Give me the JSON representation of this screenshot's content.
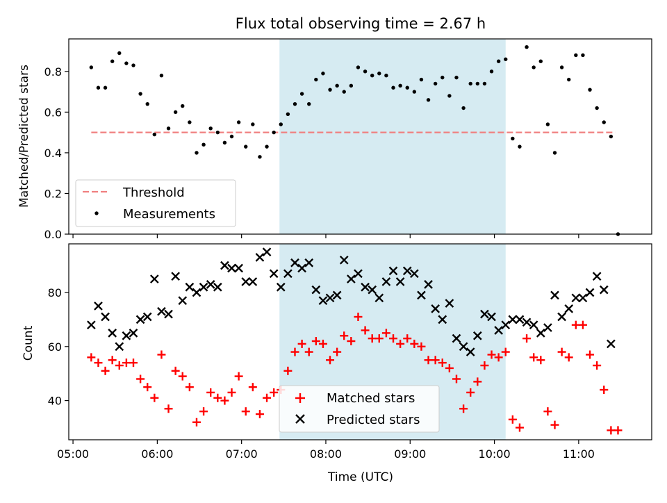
{
  "title": "Flux total observing time = 2.67 h",
  "colors": {
    "threshold": "#f08080",
    "measurement": "#000000",
    "matched": "#ff0000",
    "predicted": "#000000",
    "highlight": "#add8e6"
  },
  "chart_data": [
    {
      "type": "scatter",
      "title": "Flux total observing time = 2.67 h",
      "xlabel": "",
      "ylabel": "Matched/Predicted stars",
      "ylim": [
        0,
        0.96
      ],
      "yticks": [
        "0.0",
        "0.2",
        "0.4",
        "0.6",
        "0.8"
      ],
      "grid": false,
      "legend_position": "lower-left",
      "highlight_span": [
        "07:27",
        "10:08"
      ],
      "threshold": {
        "name": "Threshold",
        "value": 0.5,
        "x_range": [
          "05:13",
          "11:26"
        ]
      },
      "series": [
        {
          "name": "Measurements",
          "marker": "dot",
          "points": [
            [
              "05:13",
              0.82
            ],
            [
              "05:18",
              0.72
            ],
            [
              "05:23",
              0.72
            ],
            [
              "05:28",
              0.85
            ],
            [
              "05:33",
              0.89
            ],
            [
              "05:38",
              0.84
            ],
            [
              "05:43",
              0.83
            ],
            [
              "05:48",
              0.69
            ],
            [
              "05:53",
              0.64
            ],
            [
              "05:58",
              0.49
            ],
            [
              "06:03",
              0.78
            ],
            [
              "06:08",
              0.52
            ],
            [
              "06:13",
              0.6
            ],
            [
              "06:18",
              0.63
            ],
            [
              "06:23",
              0.55
            ],
            [
              "06:28",
              0.4
            ],
            [
              "06:33",
              0.44
            ],
            [
              "06:38",
              0.52
            ],
            [
              "06:43",
              0.5
            ],
            [
              "06:48",
              0.45
            ],
            [
              "06:53",
              0.48
            ],
            [
              "06:58",
              0.55
            ],
            [
              "07:03",
              0.43
            ],
            [
              "07:08",
              0.54
            ],
            [
              "07:13",
              0.38
            ],
            [
              "07:18",
              0.43
            ],
            [
              "07:23",
              0.5
            ],
            [
              "07:28",
              0.54
            ],
            [
              "07:33",
              0.59
            ],
            [
              "07:38",
              0.64
            ],
            [
              "07:43",
              0.69
            ],
            [
              "07:48",
              0.64
            ],
            [
              "07:53",
              0.76
            ],
            [
              "07:58",
              0.79
            ],
            [
              "08:03",
              0.71
            ],
            [
              "08:08",
              0.73
            ],
            [
              "08:13",
              0.7
            ],
            [
              "08:18",
              0.73
            ],
            [
              "08:23",
              0.82
            ],
            [
              "08:28",
              0.8
            ],
            [
              "08:33",
              0.78
            ],
            [
              "08:38",
              0.79
            ],
            [
              "08:43",
              0.78
            ],
            [
              "08:48",
              0.72
            ],
            [
              "08:53",
              0.73
            ],
            [
              "08:58",
              0.72
            ],
            [
              "09:03",
              0.7
            ],
            [
              "09:08",
              0.76
            ],
            [
              "09:13",
              0.66
            ],
            [
              "09:18",
              0.74
            ],
            [
              "09:23",
              0.77
            ],
            [
              "09:28",
              0.68
            ],
            [
              "09:33",
              0.77
            ],
            [
              "09:38",
              0.62
            ],
            [
              "09:43",
              0.74
            ],
            [
              "09:48",
              0.74
            ],
            [
              "09:53",
              0.74
            ],
            [
              "09:58",
              0.8
            ],
            [
              "10:03",
              0.85
            ],
            [
              "10:08",
              0.86
            ],
            [
              "10:13",
              0.47
            ],
            [
              "10:18",
              0.43
            ],
            [
              "10:23",
              0.92
            ],
            [
              "10:28",
              0.82
            ],
            [
              "10:33",
              0.85
            ],
            [
              "10:38",
              0.54
            ],
            [
              "10:43",
              0.4
            ],
            [
              "10:48",
              0.82
            ],
            [
              "10:53",
              0.76
            ],
            [
              "10:58",
              0.88
            ],
            [
              "11:03",
              0.88
            ],
            [
              "11:08",
              0.71
            ],
            [
              "11:13",
              0.62
            ],
            [
              "11:18",
              0.55
            ],
            [
              "11:23",
              0.48
            ],
            [
              "11:28",
              0.0
            ]
          ]
        }
      ]
    },
    {
      "type": "scatter",
      "title": "",
      "xlabel": "Time (UTC)",
      "ylabel": "Count",
      "ylim": [
        25.5,
        98
      ],
      "yticks": [
        "40",
        "60",
        "80"
      ],
      "xticks": [
        "05:00",
        "06:00",
        "07:00",
        "08:00",
        "09:00",
        "10:00",
        "11:00"
      ],
      "xlim": [
        "04:57",
        "11:52"
      ],
      "grid": false,
      "legend_position": "lower-center",
      "highlight_span": [
        "07:27",
        "10:08"
      ],
      "series": [
        {
          "name": "Matched stars",
          "marker": "plus",
          "points": [
            [
              "05:13",
              56
            ],
            [
              "05:18",
              54
            ],
            [
              "05:23",
              51
            ],
            [
              "05:28",
              55
            ],
            [
              "05:33",
              53
            ],
            [
              "05:38",
              54
            ],
            [
              "05:43",
              54
            ],
            [
              "05:48",
              48
            ],
            [
              "05:53",
              45
            ],
            [
              "05:58",
              41
            ],
            [
              "06:03",
              57
            ],
            [
              "06:08",
              37
            ],
            [
              "06:13",
              51
            ],
            [
              "06:18",
              49
            ],
            [
              "06:23",
              45
            ],
            [
              "06:28",
              32
            ],
            [
              "06:33",
              36
            ],
            [
              "06:38",
              43
            ],
            [
              "06:43",
              41
            ],
            [
              "06:48",
              40
            ],
            [
              "06:53",
              43
            ],
            [
              "06:58",
              49
            ],
            [
              "07:03",
              36
            ],
            [
              "07:08",
              45
            ],
            [
              "07:13",
              35
            ],
            [
              "07:18",
              41
            ],
            [
              "07:23",
              43
            ],
            [
              "07:28",
              44
            ],
            [
              "07:33",
              51
            ],
            [
              "07:38",
              58
            ],
            [
              "07:43",
              61
            ],
            [
              "07:48",
              58
            ],
            [
              "07:53",
              62
            ],
            [
              "07:58",
              61
            ],
            [
              "08:03",
              55
            ],
            [
              "08:08",
              58
            ],
            [
              "08:13",
              64
            ],
            [
              "08:18",
              62
            ],
            [
              "08:23",
              71
            ],
            [
              "08:28",
              66
            ],
            [
              "08:33",
              63
            ],
            [
              "08:38",
              63
            ],
            [
              "08:43",
              65
            ],
            [
              "08:48",
              63
            ],
            [
              "08:53",
              61
            ],
            [
              "08:58",
              63
            ],
            [
              "09:03",
              61
            ],
            [
              "09:08",
              60
            ],
            [
              "09:13",
              55
            ],
            [
              "09:18",
              55
            ],
            [
              "09:23",
              54
            ],
            [
              "09:28",
              52
            ],
            [
              "09:33",
              48
            ],
            [
              "09:38",
              37
            ],
            [
              "09:43",
              43
            ],
            [
              "09:48",
              47
            ],
            [
              "09:53",
              53
            ],
            [
              "09:58",
              57
            ],
            [
              "10:03",
              56
            ],
            [
              "10:08",
              58
            ],
            [
              "10:13",
              33
            ],
            [
              "10:18",
              30
            ],
            [
              "10:23",
              63
            ],
            [
              "10:28",
              56
            ],
            [
              "10:33",
              55
            ],
            [
              "10:38",
              36
            ],
            [
              "10:43",
              31
            ],
            [
              "10:48",
              58
            ],
            [
              "10:53",
              56
            ],
            [
              "10:58",
              68
            ],
            [
              "11:03",
              68
            ],
            [
              "11:08",
              57
            ],
            [
              "11:13",
              53
            ],
            [
              "11:18",
              44
            ],
            [
              "11:23",
              29
            ],
            [
              "11:28",
              29
            ]
          ]
        },
        {
          "name": "Predicted stars",
          "marker": "x",
          "points": [
            [
              "05:13",
              68
            ],
            [
              "05:18",
              75
            ],
            [
              "05:23",
              71
            ],
            [
              "05:28",
              65
            ],
            [
              "05:33",
              60
            ],
            [
              "05:38",
              64
            ],
            [
              "05:43",
              65
            ],
            [
              "05:48",
              70
            ],
            [
              "05:53",
              71
            ],
            [
              "05:58",
              85
            ],
            [
              "06:03",
              73
            ],
            [
              "06:08",
              72
            ],
            [
              "06:13",
              86
            ],
            [
              "06:18",
              77
            ],
            [
              "06:23",
              82
            ],
            [
              "06:28",
              80
            ],
            [
              "06:33",
              82
            ],
            [
              "06:38",
              83
            ],
            [
              "06:43",
              82
            ],
            [
              "06:48",
              90
            ],
            [
              "06:53",
              89
            ],
            [
              "06:58",
              89
            ],
            [
              "07:03",
              84
            ],
            [
              "07:08",
              84
            ],
            [
              "07:13",
              93
            ],
            [
              "07:18",
              95
            ],
            [
              "07:23",
              87
            ],
            [
              "07:28",
              82
            ],
            [
              "07:33",
              87
            ],
            [
              "07:38",
              91
            ],
            [
              "07:43",
              89
            ],
            [
              "07:48",
              91
            ],
            [
              "07:53",
              81
            ],
            [
              "07:58",
              77
            ],
            [
              "08:03",
              78
            ],
            [
              "08:08",
              79
            ],
            [
              "08:13",
              92
            ],
            [
              "08:18",
              85
            ],
            [
              "08:23",
              87
            ],
            [
              "08:28",
              82
            ],
            [
              "08:33",
              81
            ],
            [
              "08:38",
              78
            ],
            [
              "08:43",
              84
            ],
            [
              "08:48",
              88
            ],
            [
              "08:53",
              84
            ],
            [
              "08:58",
              88
            ],
            [
              "09:03",
              87
            ],
            [
              "09:08",
              79
            ],
            [
              "09:13",
              83
            ],
            [
              "09:18",
              74
            ],
            [
              "09:23",
              70
            ],
            [
              "09:28",
              76
            ],
            [
              "09:33",
              63
            ],
            [
              "09:38",
              60
            ],
            [
              "09:43",
              58
            ],
            [
              "09:48",
              64
            ],
            [
              "09:53",
              72
            ],
            [
              "09:58",
              71
            ],
            [
              "10:03",
              66
            ],
            [
              "10:08",
              68
            ],
            [
              "10:13",
              70
            ],
            [
              "10:18",
              70
            ],
            [
              "10:23",
              69
            ],
            [
              "10:28",
              68
            ],
            [
              "10:33",
              65
            ],
            [
              "10:38",
              67
            ],
            [
              "10:43",
              79
            ],
            [
              "10:48",
              71
            ],
            [
              "10:53",
              74
            ],
            [
              "10:58",
              78
            ],
            [
              "11:03",
              78
            ],
            [
              "11:08",
              80
            ],
            [
              "11:13",
              86
            ],
            [
              "11:18",
              81
            ],
            [
              "11:23",
              61
            ]
          ]
        }
      ]
    }
  ]
}
